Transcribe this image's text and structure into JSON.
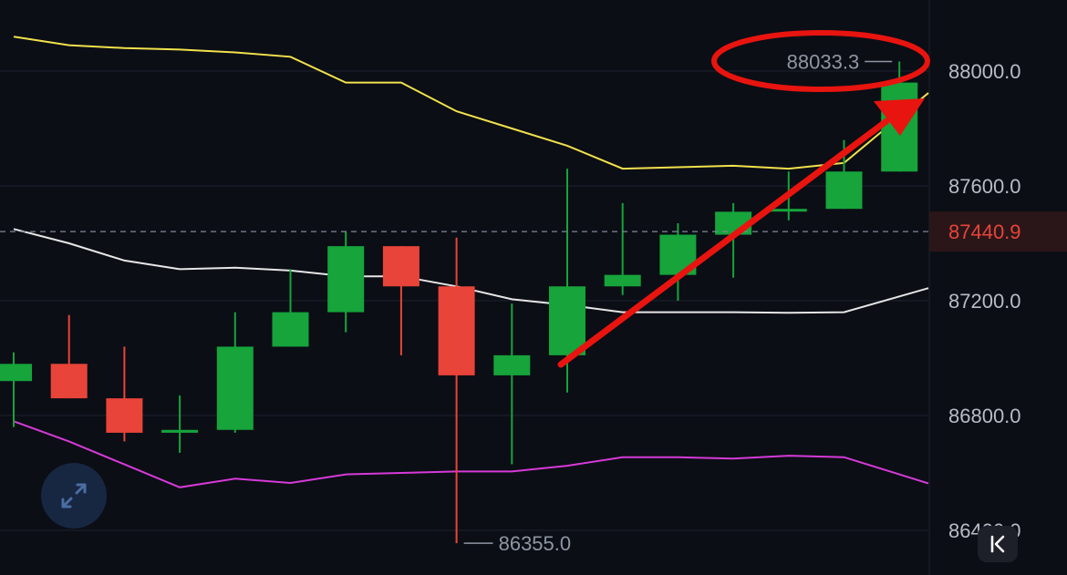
{
  "chart_data": {
    "type": "candlestick",
    "y_axis": {
      "ticks": [
        88000.0,
        87600.0,
        87200.0,
        86800.0,
        86400.0
      ],
      "tick_labels": [
        "88000.0",
        "87600.0",
        "87200.0",
        "86800.0",
        "86400.0"
      ],
      "position": "right"
    },
    "current_price": {
      "value": 87440.9,
      "label": "87440.9",
      "color": "#e8443a"
    },
    "high_marker": {
      "value": 88033.3,
      "label": "88033.3"
    },
    "low_marker": {
      "value": 86355.0,
      "label": "86355.0"
    },
    "candles": [
      {
        "open": 86920,
        "high": 87020,
        "low": 86760,
        "close": 86980
      },
      {
        "open": 86980,
        "high": 87150,
        "low": 86860,
        "close": 86860
      },
      {
        "open": 86860,
        "high": 87040,
        "low": 86710,
        "close": 86740
      },
      {
        "open": 86740,
        "high": 86870,
        "low": 86670,
        "close": 86750
      },
      {
        "open": 86750,
        "high": 87160,
        "low": 86740,
        "close": 87040
      },
      {
        "open": 87040,
        "high": 87310,
        "low": 87040,
        "close": 87160
      },
      {
        "open": 87160,
        "high": 87440,
        "low": 87090,
        "close": 87390
      },
      {
        "open": 87390,
        "high": 87390,
        "low": 87010,
        "close": 87250
      },
      {
        "open": 87250,
        "high": 87420,
        "low": 86355,
        "close": 86940
      },
      {
        "open": 86940,
        "high": 87190,
        "low": 86630,
        "close": 87010
      },
      {
        "open": 87010,
        "high": 87660,
        "low": 86880,
        "close": 87250
      },
      {
        "open": 87250,
        "high": 87540,
        "low": 87220,
        "close": 87290
      },
      {
        "open": 87290,
        "high": 87470,
        "low": 87200,
        "close": 87430
      },
      {
        "open": 87430,
        "high": 87540,
        "low": 87280,
        "close": 87510
      },
      {
        "open": 87520,
        "high": 87650,
        "low": 87480,
        "close": 87520
      },
      {
        "open": 87520,
        "high": 87760,
        "low": 87520,
        "close": 87650
      },
      {
        "open": 87650,
        "high": 88033.3,
        "low": 87650,
        "close": 87960
      }
    ],
    "series": [
      {
        "role": "upper_band",
        "color": "#f2e14c",
        "values": [
          88120,
          88090,
          88080,
          88075,
          88065,
          88050,
          87960,
          87960,
          87860,
          87800,
          87740,
          87660,
          87665,
          87670,
          87660,
          87680,
          87840
        ]
      },
      {
        "role": "middle_band",
        "color": "#e6e6e6",
        "values": [
          87450,
          87400,
          87340,
          87310,
          87315,
          87305,
          87285,
          87285,
          87250,
          87205,
          87185,
          87160,
          87160,
          87160,
          87158,
          87160,
          87215
        ]
      },
      {
        "role": "lower_band",
        "color": "#d63ad8",
        "values": [
          86780,
          86710,
          86630,
          86550,
          86580,
          86565,
          86595,
          86600,
          86605,
          86605,
          86625,
          86655,
          86655,
          86650,
          86660,
          86655,
          86595
        ]
      }
    ],
    "up_color": "#16a43b",
    "down_color": "#e8443a",
    "grid": true
  },
  "annotations": {
    "arrow_color": "#e8140f",
    "ellipse_color": "#e8140f"
  },
  "controls": {
    "expand_icon": "expand-arrows-icon",
    "back_icon": "skip-to-start-icon"
  }
}
